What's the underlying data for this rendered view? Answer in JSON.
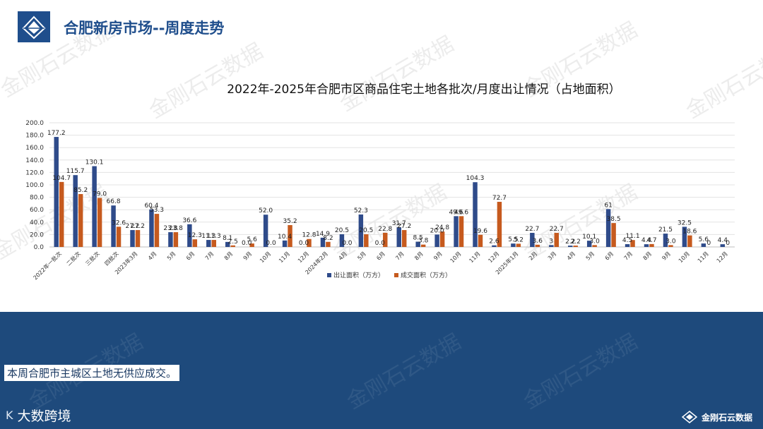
{
  "header": {
    "title": "合肥新房市场--周度走势"
  },
  "summary": "本周合肥市主城区土地无供应成交。",
  "brand_left": {
    "logo_text": "K",
    "name": "大数跨境"
  },
  "brand_right": {
    "name": "金刚石云数据"
  },
  "watermark": "金刚石云数据",
  "colors": {
    "header_blue": "#1f4e8c",
    "footer_blue": "#1e4a7c",
    "series_supply": "#2f4b8a",
    "series_deal": "#c65a1e"
  },
  "chart_data": {
    "type": "bar",
    "title": "2022年-2025年合肥市区商品住宅土地各批次/月度出让情况（占地面积）",
    "ylim": [
      0,
      200
    ],
    "ytick_step": 20,
    "yticks": [
      "0.0",
      "20.0",
      "40.0",
      "60.0",
      "80.0",
      "100.0",
      "120.0",
      "140.0",
      "160.0",
      "180.0",
      "200.0"
    ],
    "grid": true,
    "legend": "bottom",
    "categories": [
      "2022年一批次",
      "二批次",
      "三批次",
      "四批次",
      "2023年3月",
      "4月",
      "5月",
      "6月",
      "7月",
      "8月",
      "9月",
      "10月",
      "11月",
      "12月",
      "2024年2月",
      "4月",
      "5月",
      "6月",
      "7月",
      "8月",
      "9月",
      "10月",
      "11月",
      "12月",
      "2025年1月",
      "2月",
      "3月",
      "4月",
      "5月",
      "6月",
      "7月",
      "8月",
      "9月",
      "10月",
      "11月",
      "12月"
    ],
    "series": [
      {
        "name": "出让面积（万方）",
        "values": [
          177.2,
          115.7,
          130.1,
          66.8,
          27.2,
          60.4,
          23.8,
          36.6,
          11.3,
          8.1,
          0.0,
          52.0,
          10.4,
          0.0,
          14.9,
          20.5,
          52.3,
          0.0,
          31.7,
          8.5,
          20.0,
          49.6,
          104.3,
          2.6,
          5.5,
          22.7,
          3.0,
          2.2,
          10.1,
          61.0,
          4.5,
          4.4,
          21.5,
          32.5,
          5.6,
          4.4
        ],
        "labels": [
          "177.2",
          "115.7",
          "130.1",
          "66.8",
          "27.2",
          "60.4",
          "23.8",
          "36.6",
          "11.3",
          "8.1",
          "0.0",
          "52.0",
          "10.4",
          "0.0",
          "14.9",
          "20.5",
          "52.3",
          "0.0",
          "31.7",
          "8.5",
          "20.0",
          "49.6",
          "104.3",
          "2.6",
          "5.5",
          "22.7",
          "3",
          "2.2",
          "10.1",
          "61",
          "4.5",
          "4.4",
          "21.5",
          "32.5",
          "5.6",
          "4.4"
        ]
      },
      {
        "name": "成交面积（万方）",
        "values": [
          104.7,
          85.2,
          79.0,
          32.6,
          27.2,
          53.3,
          23.8,
          12.3,
          11.3,
          2.5,
          5.6,
          0.0,
          35.2,
          12.8,
          8.2,
          0.0,
          20.5,
          22.8,
          27.2,
          3.8,
          24.8,
          49.6,
          19.6,
          72.7,
          5.2,
          3.6,
          22.7,
          2.2,
          3.0,
          38.5,
          11.1,
          4.7,
          3.0,
          18.6,
          0.0,
          0.0
        ],
        "labels": [
          "104.7",
          "85.2",
          "79.0",
          "32.6",
          "27.2",
          "53.3",
          "23.8",
          "12.3",
          "11.3",
          "2.5",
          "5.6",
          "0.0",
          "35.2",
          "12.8",
          "8.2",
          "0.0",
          "20.5",
          "22.8",
          "27.2",
          "3.8",
          "24.8",
          "49.6",
          "19.6",
          "72.7",
          "5.2",
          "3.6",
          "22.7",
          "2.2",
          "3.0",
          "38.5",
          "11.1",
          "4.7",
          "3.0",
          "18.6",
          "0",
          "0"
        ]
      }
    ]
  }
}
